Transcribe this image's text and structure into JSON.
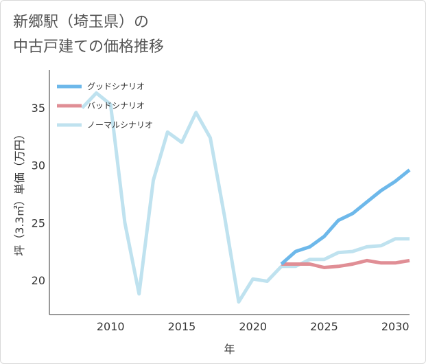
{
  "title": {
    "line1": "新郷駅（埼玉県）の",
    "line2": "中古戸建ての価格推移"
  },
  "chart_data": {
    "type": "line",
    "title": "新郷駅（埼玉県）の中古戸建ての価格推移",
    "xlabel": "年",
    "ylabel": "坪（3.3㎡）単価（万円）",
    "xlim": [
      2005.7,
      2031
    ],
    "ylim": [
      17,
      38.3
    ],
    "xticks": [
      2010,
      2015,
      2020,
      2025,
      2030
    ],
    "yticks": [
      20,
      25,
      30,
      35
    ],
    "grid": true,
    "legend_position": "top-left",
    "series": [
      {
        "name": "グッドシナリオ",
        "color": "#6db8ea",
        "x": [
          2022,
          2023,
          2024,
          2025,
          2026,
          2027,
          2028,
          2029,
          2030,
          2031
        ],
        "y": [
          21.4,
          22.5,
          22.9,
          23.8,
          25.2,
          25.8,
          26.8,
          27.8,
          28.6,
          29.6
        ]
      },
      {
        "name": "バッドシナリオ",
        "color": "#e08e95",
        "x": [
          2022,
          2023,
          2024,
          2025,
          2026,
          2027,
          2028,
          2029,
          2030,
          2031
        ],
        "y": [
          21.4,
          21.4,
          21.4,
          21.1,
          21.2,
          21.4,
          21.7,
          21.5,
          21.5,
          21.7
        ]
      },
      {
        "name": "ノーマルシナリオ",
        "color": "#bfe2ef",
        "x": [
          2008,
          2009,
          2010,
          2011,
          2012,
          2013,
          2014,
          2015,
          2016,
          2017,
          2018,
          2019,
          2020,
          2021,
          2022,
          2023,
          2024,
          2025,
          2026,
          2027,
          2028,
          2029,
          2030,
          2031
        ],
        "y": [
          35.0,
          36.3,
          35.3,
          25.0,
          18.8,
          28.7,
          32.9,
          32.0,
          34.6,
          32.4,
          25.6,
          18.1,
          20.1,
          19.9,
          21.2,
          21.2,
          21.8,
          21.8,
          22.4,
          22.5,
          22.9,
          23.0,
          23.6,
          23.6
        ]
      }
    ]
  }
}
